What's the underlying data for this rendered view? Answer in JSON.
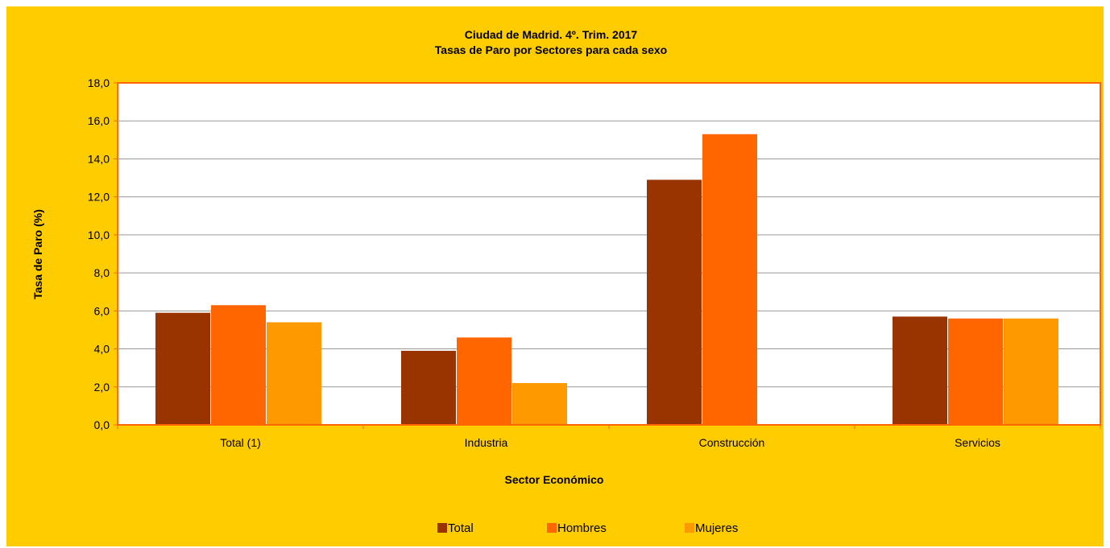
{
  "chart_data": {
    "type": "bar",
    "title": "Ciudad de Madrid. 4º. Trim. 2017",
    "subtitle": "Tasas de Paro por Sectores para cada sexo",
    "xlabel": "Sector Económico",
    "ylabel": "Tasa de Paro (%)",
    "categories": [
      "Total (1)",
      "Industria",
      "Construcción",
      "Servicios"
    ],
    "series": [
      {
        "name": "Total",
        "color": "#993300",
        "values": [
          5.9,
          3.9,
          12.9,
          5.7
        ]
      },
      {
        "name": "Hombres",
        "color": "#ff6600",
        "values": [
          6.3,
          4.6,
          15.3,
          5.6
        ]
      },
      {
        "name": "Mujeres",
        "color": "#ff9900",
        "values": [
          5.4,
          2.2,
          null,
          5.6
        ]
      }
    ],
    "ylim": [
      0,
      18
    ],
    "ytick_step": 2,
    "ytick_labels": [
      "0,0",
      "2,0",
      "4,0",
      "6,0",
      "8,0",
      "10,0",
      "12,0",
      "14,0",
      "16,0",
      "18,0"
    ],
    "grid": true,
    "legend_position": "bottom",
    "colors": {
      "background": "#ffcc00",
      "plot_area": "#ffffff",
      "plot_border": "#ff6600",
      "gridline": "#999999",
      "axis": "#ff6600"
    }
  }
}
